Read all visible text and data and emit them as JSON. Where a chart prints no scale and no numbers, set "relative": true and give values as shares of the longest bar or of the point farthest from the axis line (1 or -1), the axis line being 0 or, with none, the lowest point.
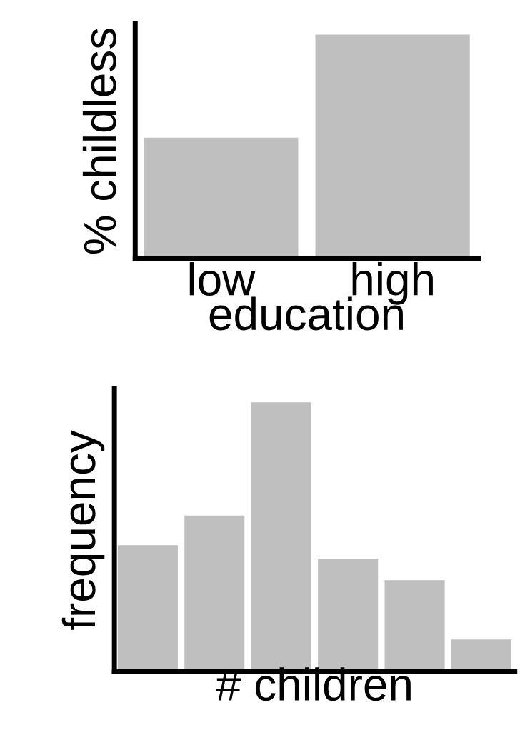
{
  "chart_data": [
    {
      "type": "bar",
      "relative": true,
      "ylabel": "% childless",
      "xlabel": "education",
      "categories": [
        "low",
        "high"
      ],
      "values": [
        0.54,
        1
      ],
      "color": "#bfbfbf",
      "grid": false,
      "legend": false
    },
    {
      "type": "bar",
      "relative": true,
      "ylabel": "frequency",
      "xlabel": "# children",
      "categories": [
        null,
        null,
        null,
        null,
        null,
        null
      ],
      "values": [
        0.47,
        0.58,
        1,
        0.42,
        0.34,
        0.12
      ],
      "color": "#bfbfbf",
      "grid": false,
      "legend": false
    }
  ]
}
